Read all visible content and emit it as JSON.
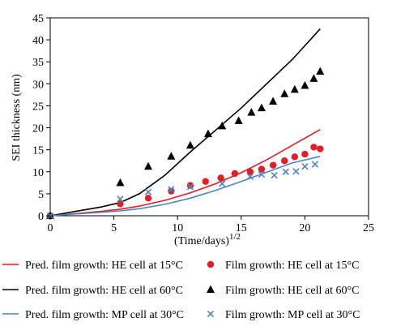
{
  "chart_data": {
    "type": "line",
    "xlabel": "(Time/days)",
    "xlabel_superscript": "1/2",
    "ylabel": "SEI thickness (nm)",
    "xlim": [
      0,
      25
    ],
    "ylim": [
      0,
      45
    ],
    "xticks": [
      "0",
      "5",
      "10",
      "15",
      "20",
      "25"
    ],
    "yticks": [
      "0",
      "5",
      "10",
      "15",
      "20",
      "25",
      "30",
      "35",
      "40",
      "45"
    ],
    "grid": false,
    "legend_position": "bottom",
    "colors": {
      "red": "#e31e24",
      "black": "#000000",
      "blue": "#4a86c5"
    },
    "series": [
      {
        "name": "Pred. film growth: HE cell at 15°C",
        "kind": "line",
        "color": "#e31e24",
        "x": [
          0,
          2,
          4,
          5.5,
          7,
          9,
          11,
          13,
          15,
          17,
          19,
          21.2
        ],
        "y": [
          0,
          0.5,
          1.0,
          1.5,
          2.2,
          3.5,
          5.2,
          7.3,
          9.8,
          12.7,
          16.0,
          19.6
        ]
      },
      {
        "name": "Pred. film growth: HE cell at 60°C",
        "kind": "line",
        "color": "#000000",
        "x": [
          0,
          2,
          4,
          5.5,
          7,
          9,
          11,
          13,
          15,
          17,
          19,
          21.2
        ],
        "y": [
          0,
          1.0,
          2.0,
          3.0,
          5.0,
          9.2,
          14.5,
          19.5,
          24.5,
          30.0,
          35.5,
          42.5
        ]
      },
      {
        "name": "Pred. film growth: MP cell at 30°C",
        "kind": "line",
        "color": "#4a86c5",
        "x": [
          0,
          2,
          4,
          5.5,
          7,
          9,
          11,
          13,
          15,
          17,
          19,
          21.2
        ],
        "y": [
          0,
          0.4,
          0.8,
          1.1,
          1.6,
          2.6,
          4.0,
          5.8,
          7.8,
          9.9,
          12.0,
          13.5
        ]
      },
      {
        "name": "Film growth: HE cell at 15°C",
        "kind": "circle",
        "color": "#e31e24",
        "x": [
          0,
          5.5,
          7.7,
          9.5,
          11,
          12.2,
          13.4,
          14.5,
          15.7,
          16.6,
          17.5,
          18.4,
          19.2,
          20,
          20.7,
          21.2
        ],
        "y": [
          0,
          2.7,
          4.0,
          5.6,
          6.9,
          7.8,
          8.6,
          9.6,
          10.0,
          10.6,
          11.5,
          12.5,
          13.4,
          14.0,
          15.6,
          15.2
        ]
      },
      {
        "name": "Film growth: HE cell at 60°C",
        "kind": "triangle",
        "color": "#000000",
        "x": [
          0,
          5.5,
          7.7,
          9.5,
          11,
          12.4,
          13.5,
          14.8,
          15.8,
          16.6,
          17.5,
          18.4,
          19.2,
          20,
          20.7,
          21.2
        ],
        "y": [
          0,
          7.5,
          11.2,
          13.5,
          16.0,
          18.6,
          20.4,
          21.6,
          23.5,
          24.5,
          26.0,
          27.7,
          28.7,
          29.6,
          31.2,
          32.8
        ]
      },
      {
        "name": "Film growth: MP cell at 30°C",
        "kind": "cross",
        "color": "#4a86c5",
        "x": [
          0,
          5.5,
          7.7,
          9.5,
          11,
          13.5,
          15.7,
          16.6,
          17.6,
          18.5,
          19.3,
          20,
          20.8
        ],
        "y": [
          0,
          3.8,
          5.4,
          6.0,
          6.6,
          7.3,
          8.9,
          9.4,
          9.2,
          10.0,
          10.1,
          11.2,
          11.7
        ]
      }
    ]
  }
}
